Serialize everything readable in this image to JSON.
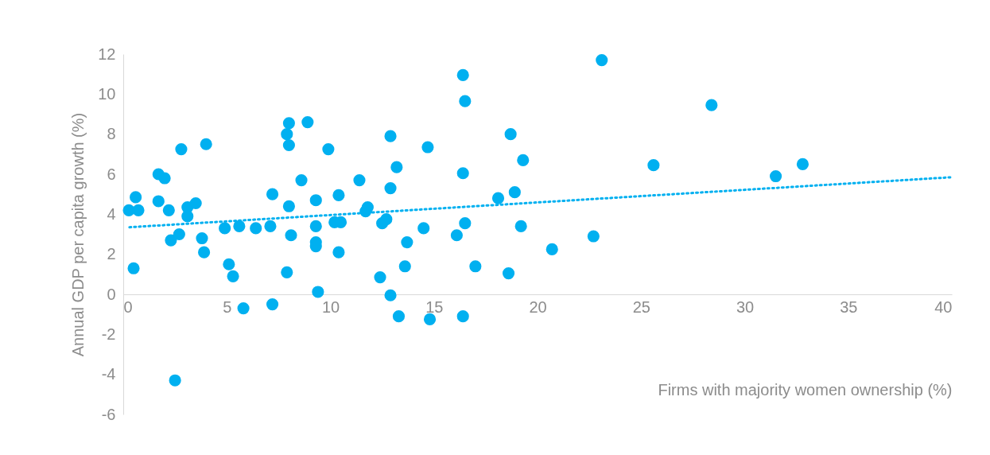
{
  "chart_data": {
    "type": "scatter",
    "xlabel": "Firms with majority women ownership (%)",
    "ylabel": "Annual GDP per capita growth (%)",
    "xlim": [
      0,
      40
    ],
    "xticks": [
      0,
      5,
      10,
      15,
      20,
      25,
      30,
      35,
      40
    ],
    "ylim": [
      -6,
      12
    ],
    "yticks": [
      -6,
      -4,
      -2,
      0,
      2,
      4,
      6,
      8,
      10,
      12
    ],
    "grid": false,
    "legend": false,
    "marker": "circle",
    "series": [
      {
        "color": "#00b0f0",
        "x": [
          0.27,
          0.6,
          0.73,
          0.5,
          1.7,
          2.0,
          1.7,
          2.2,
          2.3,
          2.7,
          2.8,
          3.1,
          3.1,
          3.5,
          4.0,
          3.8,
          3.9,
          2.5,
          4.9,
          5.1,
          5.3,
          5.6,
          5.8,
          6.4,
          7.1,
          7.2,
          7.2,
          7.9,
          8.0,
          8.0,
          8.0,
          8.1,
          7.9,
          8.6,
          8.9,
          9.3,
          9.3,
          9.3,
          9.3,
          9.4,
          9.9,
          10.4,
          10.2,
          10.5,
          10.4,
          11.4,
          11.7,
          11.8,
          12.9,
          13.2,
          12.9,
          12.5,
          12.7,
          12.4,
          12.9,
          13.3,
          13.7,
          13.6,
          14.7,
          14.5,
          14.8,
          16.4,
          16.5,
          16.4,
          16.5,
          16.1,
          16.4,
          17.0,
          18.7,
          19.3,
          18.1,
          18.9,
          19.2,
          18.6,
          20.7,
          22.7,
          23.1,
          25.6,
          28.4,
          31.5,
          32.8
        ],
        "values": [
          4.2,
          4.85,
          4.2,
          1.3,
          6.0,
          5.8,
          4.65,
          4.2,
          2.7,
          3.0,
          7.25,
          4.35,
          3.9,
          4.55,
          7.5,
          2.8,
          2.1,
          -4.3,
          3.3,
          1.5,
          0.9,
          3.4,
          -0.7,
          3.3,
          3.4,
          5.0,
          -0.5,
          8.0,
          8.55,
          7.45,
          4.4,
          2.95,
          1.1,
          5.7,
          8.6,
          4.7,
          3.4,
          2.6,
          2.4,
          0.12,
          7.25,
          4.95,
          3.6,
          3.6,
          2.1,
          5.7,
          4.15,
          4.35,
          7.9,
          6.35,
          5.3,
          3.55,
          3.75,
          0.85,
          -0.05,
          -1.1,
          2.6,
          1.4,
          7.35,
          3.3,
          -1.25,
          10.95,
          9.65,
          6.05,
          3.55,
          2.95,
          -1.1,
          1.4,
          8.0,
          6.7,
          4.8,
          5.1,
          3.4,
          1.05,
          2.25,
          2.9,
          11.7,
          6.45,
          9.45,
          5.9,
          6.5
        ]
      },
      {
        "type": "line",
        "color": "#00b0f0",
        "line_style": "dotted",
        "marker": "none",
        "x": [
          0.3,
          40
        ],
        "values": [
          3.35,
          5.85
        ]
      }
    ]
  }
}
